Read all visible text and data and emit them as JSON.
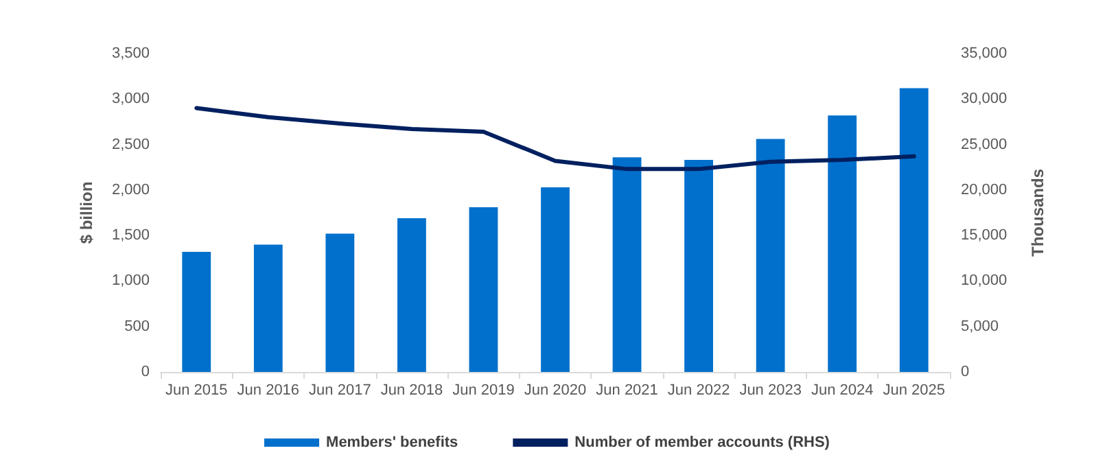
{
  "chart_data": {
    "type": "bar",
    "ylabel": "$ billion",
    "y2label": "Thousands",
    "categories": [
      "Jun 2015",
      "Jun 2016",
      "Jun 2017",
      "Jun 2018",
      "Jun 2019",
      "Jun 2020",
      "Jun 2021",
      "Jun 2022",
      "Jun 2023",
      "Jun 2024",
      "Jun 2025"
    ],
    "series": [
      {
        "name": "Members' benefits",
        "color": "#0070cc",
        "values": [
          1320,
          1400,
          1520,
          1690,
          1810,
          2030,
          2360,
          2330,
          2560,
          2820,
          3120
        ]
      },
      {
        "name": "Number of member accounts (RHS)",
        "type": "line",
        "axis": "y2",
        "color": "#002060",
        "values": [
          29000,
          28000,
          27300,
          26700,
          26400,
          23200,
          22300,
          22300,
          23100,
          23300,
          23700
        ]
      }
    ],
    "ylim": [
      0,
      3500
    ],
    "yticks": [
      0,
      500,
      {
        "value": 1000,
        "label": "1,000"
      },
      {
        "value": 1500,
        "label": "1,500"
      },
      {
        "value": 2000,
        "label": "2,000"
      },
      {
        "value": 2500,
        "label": "2,500"
      },
      {
        "value": 3000,
        "label": "3,000"
      },
      {
        "value": 3500,
        "label": "3,500"
      }
    ],
    "y2lim": [
      0,
      35000
    ],
    "y2ticks": [
      0,
      {
        "value": 5000,
        "label": "5,000"
      },
      {
        "value": 10000,
        "label": "10,000"
      },
      {
        "value": 15000,
        "label": "15,000"
      },
      {
        "value": 20000,
        "label": "20,000"
      },
      {
        "value": 25000,
        "label": "25,000"
      },
      {
        "value": 30000,
        "label": "30,000"
      },
      {
        "value": 35000,
        "label": "35,000"
      }
    ],
    "grid": false,
    "legend": "bottom",
    "marker": "none",
    "line_style": "solid"
  }
}
